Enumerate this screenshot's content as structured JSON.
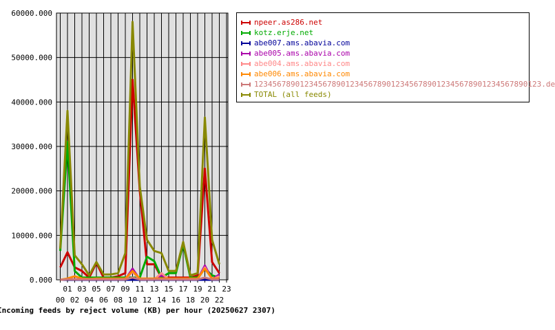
{
  "chart_data": {
    "type": "line",
    "title": "Incoming feeds by reject volume (KB) per hour (20250627 2307)",
    "ylim": [
      0,
      60000
    ],
    "y_ticks": [
      "0.000",
      "10000.000",
      "20000.000",
      "30000.000",
      "40000.000",
      "50000.000",
      "60000.000"
    ],
    "x": [
      "00",
      "01",
      "02",
      "03",
      "04",
      "05",
      "06",
      "07",
      "08",
      "09",
      "10",
      "11",
      "12",
      "13",
      "14",
      "15",
      "16",
      "17",
      "18",
      "19",
      "20",
      "21",
      "22",
      "23"
    ],
    "grid": true,
    "legend_placement": "right",
    "series": [
      {
        "name": "npeer.as286.net",
        "color": "#cc0000",
        "values": [
          2800,
          6200,
          2800,
          2000,
          500,
          3800,
          500,
          500,
          800,
          1500,
          45000,
          20000,
          3500,
          3500,
          500,
          500,
          500,
          500,
          500,
          1000,
          25000,
          4000,
          1500,
          null
        ]
      },
      {
        "name": "kotz.erje.net",
        "color": "#00aa00",
        "values": [
          6500,
          31000,
          2000,
          500,
          500,
          500,
          500,
          500,
          500,
          500,
          500,
          500,
          5200,
          4200,
          500,
          1500,
          1500,
          8000,
          500,
          500,
          2500,
          1000,
          500,
          null
        ]
      },
      {
        "name": "abe007.ams.abavia.com",
        "color": "#000099",
        "values": [
          0,
          0,
          0,
          0,
          0,
          0,
          0,
          0,
          0,
          0,
          0,
          0,
          0,
          0,
          0,
          0,
          0,
          0,
          0,
          0,
          0,
          0,
          0,
          null
        ]
      },
      {
        "name": "abe005.ams.abavia.com",
        "color": "#aa00aa",
        "values": [
          0,
          200,
          100,
          100,
          100,
          100,
          100,
          100,
          100,
          100,
          2500,
          100,
          100,
          100,
          1000,
          100,
          100,
          100,
          100,
          100,
          3200,
          100,
          1200,
          null
        ]
      },
      {
        "name": "abe004.ams.abavia.com",
        "color": "#ff8888",
        "values": [
          0,
          200,
          100,
          100,
          100,
          100,
          100,
          100,
          100,
          100,
          1800,
          100,
          100,
          100,
          1500,
          100,
          100,
          100,
          100,
          100,
          2800,
          100,
          800,
          null
        ]
      },
      {
        "name": "abe006.ams.abavia.com",
        "color": "#ff8800",
        "values": [
          0,
          300,
          800,
          300,
          200,
          300,
          300,
          300,
          300,
          300,
          2000,
          300,
          300,
          300,
          300,
          300,
          300,
          300,
          300,
          300,
          2500,
          300,
          300,
          null
        ]
      },
      {
        "name": "123456789012345678901234567890123456789012345678901234567890123.de",
        "color": "#cc7777",
        "values": [
          0,
          100,
          100,
          100,
          100,
          100,
          100,
          100,
          100,
          100,
          500,
          100,
          100,
          100,
          100,
          100,
          100,
          100,
          100,
          100,
          500,
          100,
          100,
          null
        ]
      },
      {
        "name": "TOTAL (all feeds)",
        "color": "#888800",
        "values": [
          7000,
          38000,
          5500,
          3500,
          1000,
          4000,
          1200,
          1200,
          1500,
          6000,
          58000,
          21000,
          9000,
          6500,
          6000,
          2000,
          2000,
          8500,
          1000,
          1500,
          36500,
          9000,
          3500,
          null
        ]
      }
    ]
  }
}
